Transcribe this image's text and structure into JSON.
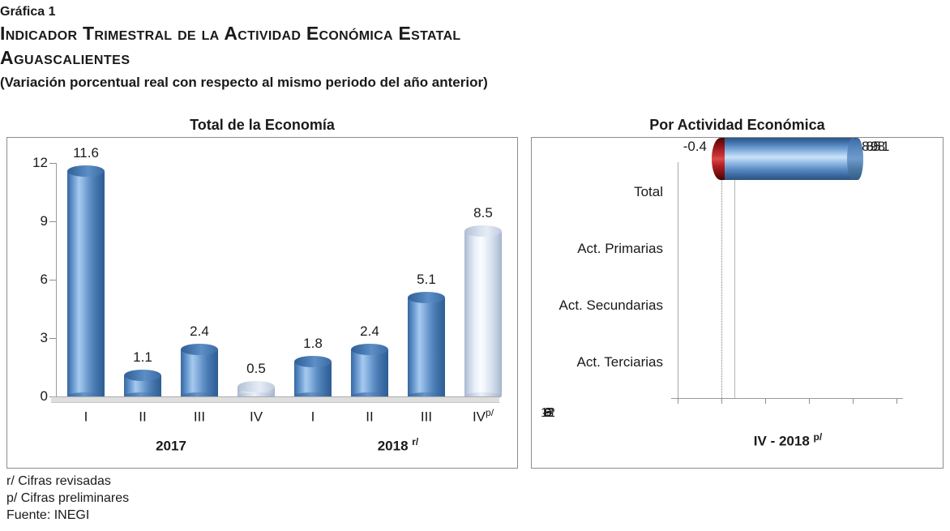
{
  "header": {
    "figure_label": "Gráfica 1",
    "title": "Indicador Trimestral de la Actividad Económica Estatal",
    "region": "Aguascalientes",
    "subtitle": "(Variación porcentual real con respecto al mismo periodo del año anterior)"
  },
  "colors": {
    "bar_blue": "#4a7cb5",
    "bar_light_blue": "#dce6f2",
    "bar_negative_red": "#b22024",
    "axis_gray": "#9a9a9a",
    "panel_border": "#8c8c8c",
    "text": "#1a1a1a"
  },
  "footnotes": [
    "r/ Cifras revisadas",
    "p/ Cifras preliminares",
    "Fuente: INEGI"
  ],
  "chart_data": [
    {
      "type": "bar",
      "title": "Total de la Economía",
      "categories": [
        "I",
        "II",
        "III",
        "IV",
        "I",
        "II",
        "III",
        "IV"
      ],
      "category_sups": [
        "",
        "",
        "",
        "",
        "",
        "",
        "",
        "p/"
      ],
      "values": [
        11.6,
        1.1,
        2.4,
        0.5,
        1.8,
        2.4,
        5.1,
        8.5
      ],
      "bar_styles": [
        "vblue",
        "vblue",
        "vblue",
        "vlight",
        "vblue",
        "vblue",
        "vblue",
        "vlight"
      ],
      "yticks": [
        12,
        9,
        6,
        3,
        0
      ],
      "ylim": [
        0,
        12
      ],
      "group_labels": [
        {
          "text": "2017",
          "sup": ""
        },
        {
          "text": "2018",
          "sup": "r/"
        }
      ],
      "grid": false,
      "legend": "none"
    },
    {
      "type": "bar-horizontal",
      "title": "Por Actividad Económica",
      "categories": [
        "Total",
        "Act. Primarias",
        "Act. Secundarias",
        "Act. Terciarias"
      ],
      "values": [
        8.5,
        -0.4,
        9.1,
        8.8
      ],
      "bar_styles": [
        "hlight",
        "hred",
        "hblue",
        "hblue"
      ],
      "xticks": [
        -3,
        0,
        3,
        6,
        9,
        12
      ],
      "xlim": [
        -3,
        12
      ],
      "axis_label": {
        "text": "IV - 2018",
        "sup": "p/"
      },
      "grid": false,
      "legend": "none"
    }
  ]
}
